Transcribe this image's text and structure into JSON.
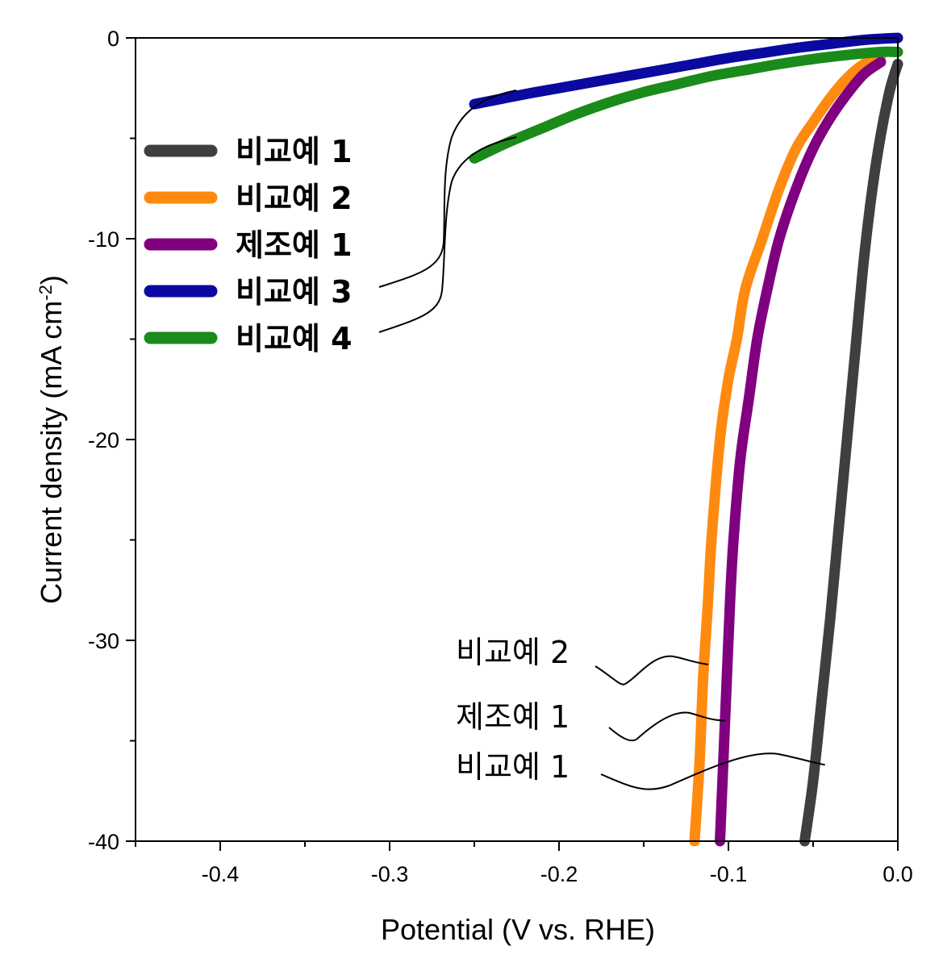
{
  "chart_data": {
    "type": "line",
    "title": "",
    "xlabel": "Potential (V vs. RHE)",
    "ylabel_main": "Current density (mA cm",
    "ylabel_sup": "-2",
    "ylabel_close": ")",
    "xlim": [
      -0.45,
      0.0
    ],
    "ylim": [
      -40,
      0
    ],
    "xticks": [
      -0.4,
      -0.3,
      -0.2,
      -0.1,
      0.0
    ],
    "xtick_labels": [
      "-0.4",
      "-0.3",
      "-0.2",
      "-0.1",
      "0.0"
    ],
    "yticks": [
      0,
      -10,
      -20,
      -30,
      -40
    ],
    "ytick_labels": [
      "0",
      "-10",
      "-20",
      "-30",
      "-40"
    ],
    "legend_position": "upper-left",
    "series": [
      {
        "name": "비교예 1",
        "color": "#3f3f3f",
        "x": [
          -0.055,
          -0.05,
          -0.045,
          -0.04,
          -0.035,
          -0.03,
          -0.025,
          -0.02,
          -0.015,
          -0.01,
          -0.005,
          -0.002,
          0.0
        ],
        "y": [
          -40,
          -37,
          -33,
          -29,
          -24.5,
          -20,
          -15.5,
          -11,
          -7.5,
          -4.8,
          -2.7,
          -1.8,
          -1.3
        ]
      },
      {
        "name": "비교예 2",
        "color": "#ff8a10",
        "x": [
          -0.12,
          -0.117,
          -0.115,
          -0.112,
          -0.11,
          -0.105,
          -0.1,
          -0.095,
          -0.09,
          -0.08,
          -0.07,
          -0.06,
          -0.05,
          -0.04,
          -0.03,
          -0.02,
          -0.01
        ],
        "y": [
          -40,
          -36,
          -32,
          -28,
          -25,
          -20,
          -17,
          -15,
          -12.5,
          -10,
          -7.5,
          -5.5,
          -4.2,
          -3.0,
          -2.0,
          -1.3,
          -0.9
        ]
      },
      {
        "name": "제조예 1",
        "color": "#800080",
        "x": [
          -0.105,
          -0.103,
          -0.101,
          -0.099,
          -0.097,
          -0.093,
          -0.088,
          -0.083,
          -0.077,
          -0.07,
          -0.06,
          -0.05,
          -0.04,
          -0.03,
          -0.02,
          -0.01
        ],
        "y": [
          -40,
          -36,
          -32,
          -28,
          -25,
          -21,
          -18,
          -15,
          -12.5,
          -10,
          -7.5,
          -5.5,
          -4.0,
          -2.8,
          -1.8,
          -1.2
        ]
      },
      {
        "name": "비교예 3",
        "color": "#0a0aa0",
        "x": [
          -0.25,
          -0.22,
          -0.2,
          -0.18,
          -0.16,
          -0.14,
          -0.12,
          -0.1,
          -0.08,
          -0.06,
          -0.04,
          -0.02,
          0.0
        ],
        "y": [
          -3.3,
          -2.8,
          -2.5,
          -2.2,
          -1.9,
          -1.6,
          -1.3,
          -1.0,
          -0.75,
          -0.5,
          -0.3,
          -0.1,
          0.0
        ]
      },
      {
        "name": "비교예 4",
        "color": "#1a8a1a",
        "x": [
          -0.25,
          -0.23,
          -0.21,
          -0.19,
          -0.17,
          -0.15,
          -0.13,
          -0.11,
          -0.09,
          -0.07,
          -0.05,
          -0.03,
          -0.01,
          0.0
        ],
        "y": [
          -6.0,
          -5.2,
          -4.5,
          -3.8,
          -3.2,
          -2.7,
          -2.3,
          -1.9,
          -1.6,
          -1.3,
          -1.05,
          -0.85,
          -0.7,
          -0.7
        ]
      }
    ],
    "annotations": [
      {
        "text": "비교예 2",
        "target_x": -0.112,
        "target_y": -31.2
      },
      {
        "text": "제조예 1",
        "target_x": -0.102,
        "target_y": -34.0
      },
      {
        "text": "비교예 1",
        "target_x": -0.043,
        "target_y": -36.2
      }
    ]
  }
}
